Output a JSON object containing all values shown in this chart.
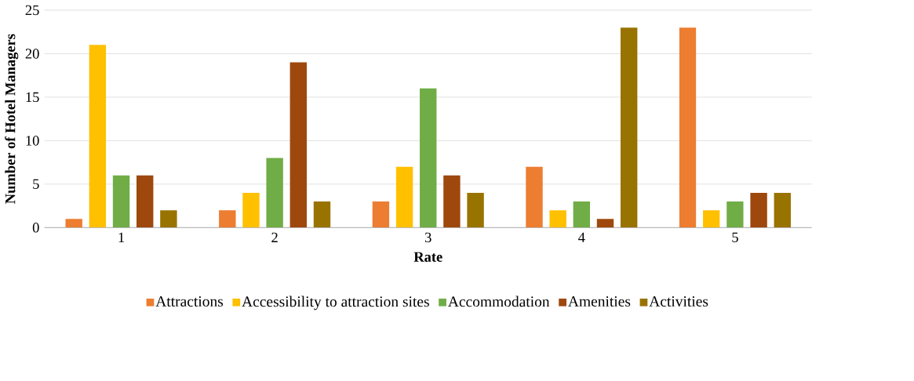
{
  "chart_data": {
    "type": "bar",
    "xlabel": "Rate",
    "ylabel": "Number of Hotel Managers",
    "categories": [
      "1",
      "2",
      "3",
      "4",
      "5"
    ],
    "series": [
      {
        "name": "Attractions",
        "color": "#ed7d31",
        "values": [
          1,
          2,
          3,
          7,
          23
        ]
      },
      {
        "name": "Accessibility to attraction sites",
        "color": "#ffc000",
        "values": [
          21,
          4,
          7,
          2,
          2
        ]
      },
      {
        "name": "Accommodation",
        "color": "#70ad47",
        "values": [
          6,
          8,
          16,
          3,
          3
        ]
      },
      {
        "name": "Amenities",
        "color": "#9e480e",
        "values": [
          6,
          19,
          6,
          1,
          4
        ]
      },
      {
        "name": "Activities",
        "color": "#997300",
        "values": [
          2,
          3,
          4,
          23,
          4
        ]
      }
    ],
    "ylim": [
      0,
      25
    ],
    "yticks": [
      0,
      5,
      10,
      15,
      20,
      25
    ],
    "grid": "y",
    "legend": "bottom"
  }
}
